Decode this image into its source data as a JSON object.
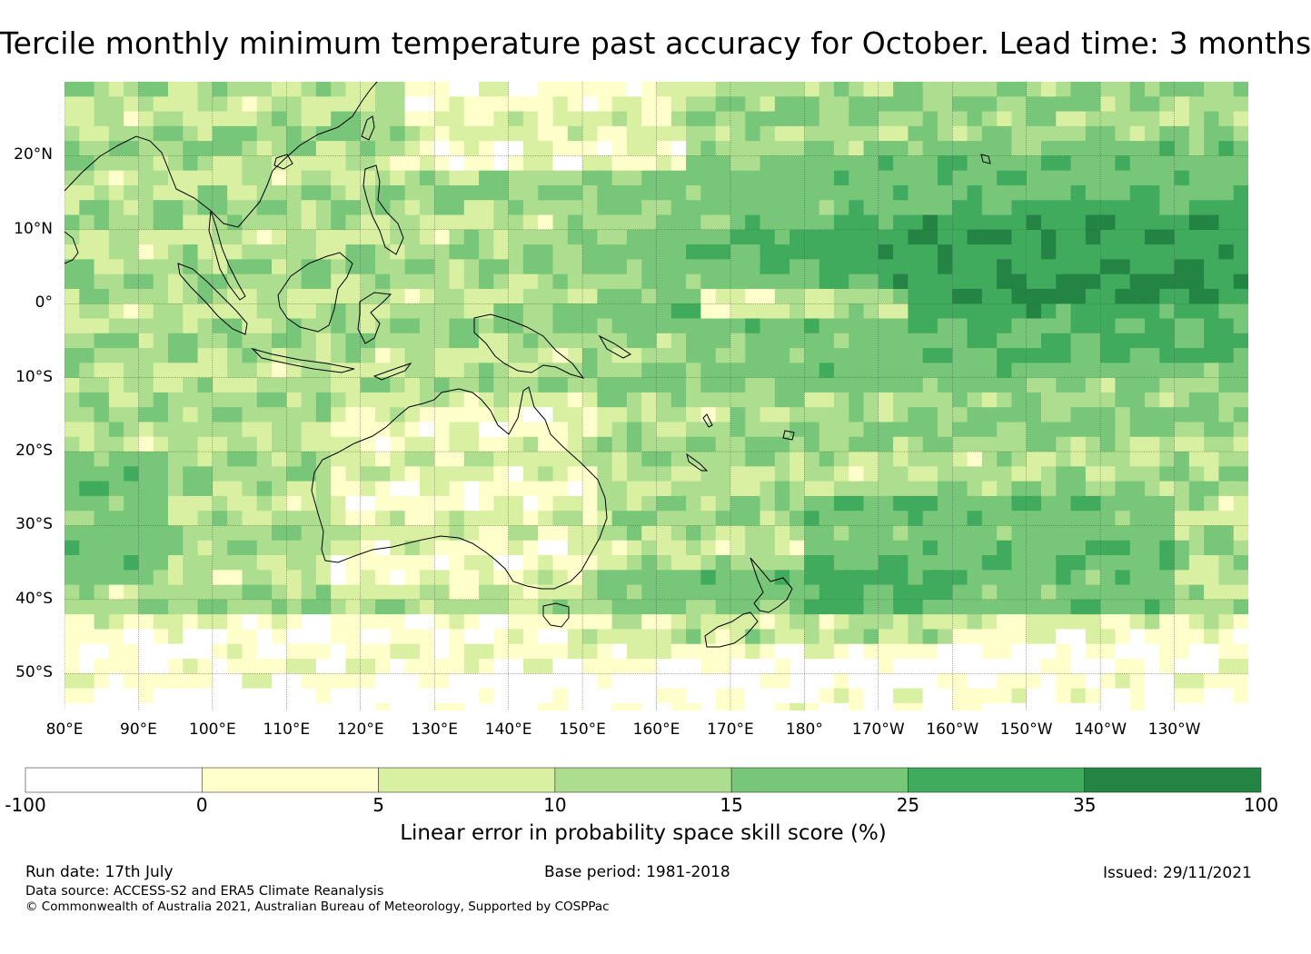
{
  "title": "Tercile monthly minimum temperature past accuracy for October. Lead time: 3 months",
  "map": {
    "lat_labels": [
      "20°N",
      "10°N",
      "0°",
      "10°S",
      "20°S",
      "30°S",
      "40°S",
      "50°S"
    ],
    "lon_labels": [
      "80°E",
      "90°E",
      "100°E",
      "110°E",
      "120°E",
      "130°E",
      "140°E",
      "150°E",
      "160°E",
      "170°E",
      "180°",
      "170°W",
      "160°W",
      "150°W",
      "140°W",
      "130°W"
    ],
    "lon_range": [
      80,
      240
    ],
    "lat_range": [
      -55,
      30
    ],
    "gridlines": true
  },
  "colorbar": {
    "colors": [
      "#ffffff",
      "#ffffcc",
      "#d9f0a3",
      "#addd8e",
      "#78c679",
      "#41ab5d",
      "#238443"
    ],
    "ticks": [
      "-100",
      "0",
      "5",
      "10",
      "15",
      "25",
      "35",
      "100"
    ],
    "label": "Linear error in probability space skill score (%)"
  },
  "footer": {
    "run_date": "Run date: 17th July",
    "base_period": "Base period: 1981-2018",
    "issued": "Issued: 29/11/2021",
    "data_source": "Data source: ACCESS-S2 and ERA5 Climate Reanalysis",
    "copyright": "© Commonwealth of Australia 2021, Australian Bureau of Meteorology, Supported by COSPPac"
  }
}
